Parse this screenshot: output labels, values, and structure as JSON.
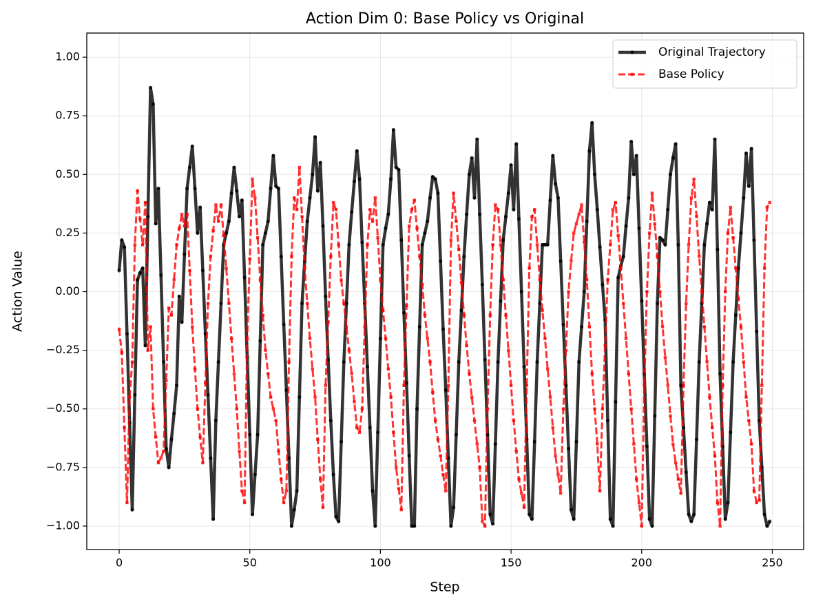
{
  "chart_data": {
    "type": "line",
    "title": "Action Dim 0: Base Policy vs Original",
    "x_label": "Step",
    "y_label": "Action Value",
    "xlim": [
      -12.4,
      262
    ],
    "ylim": [
      -1.1,
      1.103
    ],
    "xticks": [
      0,
      50,
      100,
      150,
      200,
      250
    ],
    "yticks": [
      {
        "value": -1,
        "label": "−1.00"
      },
      {
        "value": -0.75,
        "label": "−0.75"
      },
      {
        "value": -0.5,
        "label": "−0.50"
      },
      {
        "value": -0.25,
        "label": "−0.25"
      },
      {
        "value": 0,
        "label": "0.00"
      },
      {
        "value": 0.25,
        "label": "0.25"
      },
      {
        "value": 0.5,
        "label": "0.50"
      },
      {
        "value": 0.75,
        "label": "0.75"
      },
      {
        "value": 1,
        "label": "1.00"
      }
    ],
    "grid": true,
    "legend": "upper right",
    "x": [
      0,
      1,
      2,
      3,
      4,
      5,
      6,
      7,
      8,
      9,
      10,
      11,
      12,
      13,
      14,
      15,
      16,
      17,
      18,
      19,
      20,
      21,
      22,
      23,
      24,
      25,
      26,
      27,
      28,
      29,
      30,
      31,
      32,
      33,
      34,
      35,
      36,
      37,
      38,
      39,
      40,
      41,
      42,
      43,
      44,
      45,
      46,
      47,
      48,
      49,
      50,
      51,
      52,
      53,
      54,
      55,
      56,
      57,
      58,
      59,
      60,
      61,
      62,
      63,
      64,
      65,
      66,
      67,
      68,
      69,
      70,
      71,
      72,
      73,
      74,
      75,
      76,
      77,
      78,
      79,
      80,
      81,
      82,
      83,
      84,
      85,
      86,
      87,
      88,
      89,
      90,
      91,
      92,
      93,
      94,
      95,
      96,
      97,
      98,
      99,
      100,
      101,
      102,
      103,
      104,
      105,
      106,
      107,
      108,
      109,
      110,
      111,
      112,
      113,
      114,
      115,
      116,
      117,
      118,
      119,
      120,
      121,
      122,
      123,
      124,
      125,
      126,
      127,
      128,
      129,
      130,
      131,
      132,
      133,
      134,
      135,
      136,
      137,
      138,
      139,
      140,
      141,
      142,
      143,
      144,
      145,
      146,
      147,
      148,
      149,
      150,
      151,
      152,
      153,
      154,
      155,
      156,
      157,
      158,
      159,
      160,
      161,
      162,
      163,
      164,
      165,
      166,
      167,
      168,
      169,
      170,
      171,
      172,
      173,
      174,
      175,
      176,
      177,
      178,
      179,
      180,
      181,
      182,
      183,
      184,
      185,
      186,
      187,
      188,
      189,
      190,
      191,
      192,
      193,
      194,
      195,
      196,
      197,
      198,
      199,
      200,
      201,
      202,
      203,
      204,
      205,
      206,
      207,
      208,
      209,
      210,
      211,
      212,
      213,
      214,
      215,
      216,
      217,
      218,
      219,
      220,
      221,
      222,
      223,
      224,
      225,
      226,
      227,
      228,
      229,
      230,
      231,
      232,
      233,
      234,
      235,
      236,
      237,
      238,
      239,
      240,
      241,
      242,
      243,
      244,
      245,
      246,
      247,
      248,
      249
    ],
    "series": [
      {
        "name": "Original Trajectory",
        "color": "#000000",
        "style": "solid",
        "marker": "circle",
        "values": [
          0.09,
          0.22,
          0.19,
          -0.18,
          -0.56,
          -0.93,
          -0.44,
          0.05,
          0.08,
          0.1,
          -0.23,
          0.32,
          0.87,
          0.8,
          0.29,
          0.44,
          0.07,
          -0.3,
          -0.67,
          -0.75,
          -0.63,
          -0.52,
          -0.4,
          -0.02,
          -0.13,
          0.16,
          0.44,
          0.53,
          0.62,
          0.44,
          0.25,
          0.36,
          0.09,
          -0.18,
          -0.44,
          -0.71,
          -0.97,
          -0.55,
          -0.3,
          -0.05,
          0.2,
          0.25,
          0.3,
          0.42,
          0.53,
          0.43,
          0.32,
          0.39,
          0.06,
          -0.28,
          -0.61,
          -0.95,
          -0.78,
          -0.61,
          -0.21,
          0.2,
          0.25,
          0.3,
          0.44,
          0.58,
          0.45,
          0.44,
          0.15,
          -0.14,
          -0.42,
          -0.71,
          -1.0,
          -0.93,
          -0.85,
          -0.45,
          -0.05,
          0.13,
          0.3,
          0.4,
          0.5,
          0.66,
          0.43,
          0.55,
          0.28,
          -0.02,
          -0.29,
          -0.55,
          -0.78,
          -0.96,
          -0.98,
          -0.64,
          -0.3,
          -0.05,
          0.2,
          0.34,
          0.47,
          0.6,
          0.48,
          0.21,
          -0.05,
          -0.32,
          -0.58,
          -0.85,
          -1.0,
          -0.6,
          -0.2,
          0.2,
          0.27,
          0.33,
          0.48,
          0.69,
          0.53,
          0.52,
          0.22,
          -0.09,
          -0.39,
          -0.7,
          -1.0,
          -1.0,
          -0.5,
          -0.15,
          0.2,
          0.25,
          0.3,
          0.4,
          0.49,
          0.48,
          0.42,
          0.13,
          -0.16,
          -0.42,
          -0.71,
          -1.0,
          -0.92,
          -0.61,
          -0.3,
          -0.08,
          0.15,
          0.33,
          0.5,
          0.57,
          0.4,
          0.65,
          0.33,
          0.03,
          -0.29,
          -0.61,
          -0.95,
          -0.99,
          -0.65,
          -0.3,
          -0.04,
          0.22,
          0.32,
          0.42,
          0.54,
          0.35,
          0.63,
          0.31,
          0.0,
          -0.32,
          -0.63,
          -0.95,
          -0.97,
          -0.64,
          -0.3,
          -0.05,
          0.2,
          0.2,
          0.2,
          0.39,
          0.58,
          0.46,
          0.4,
          0.13,
          -0.14,
          -0.4,
          -0.67,
          -0.93,
          -0.97,
          -0.64,
          -0.3,
          -0.15,
          0.0,
          0.3,
          0.6,
          0.72,
          0.5,
          0.35,
          0.19,
          0.03,
          -0.12,
          -0.55,
          -0.97,
          -1.0,
          -0.47,
          0.06,
          0.11,
          0.15,
          0.28,
          0.4,
          0.64,
          0.5,
          0.58,
          0.27,
          -0.04,
          -0.35,
          -0.66,
          -0.97,
          -1.0,
          -0.53,
          -0.05,
          0.23,
          0.22,
          0.2,
          0.35,
          0.5,
          0.57,
          0.63,
          0.2,
          -0.4,
          -0.58,
          -0.77,
          -0.95,
          -0.98,
          -0.95,
          -0.63,
          -0.3,
          -0.05,
          0.2,
          0.29,
          0.38,
          0.35,
          0.65,
          0.18,
          -0.35,
          -0.66,
          -0.97,
          -0.9,
          -0.6,
          -0.3,
          -0.1,
          0.1,
          0.25,
          0.4,
          0.59,
          0.45,
          0.61,
          0.22,
          -0.17,
          -0.55,
          -0.75,
          -0.95,
          -1.0,
          -0.98
        ]
      },
      {
        "name": "Base Policy",
        "color": "#ff0000",
        "style": "dashed",
        "marker": "square",
        "values": [
          -0.16,
          -0.26,
          -0.58,
          -0.9,
          -0.45,
          -0.3,
          0.2,
          0.43,
          0.31,
          0.2,
          0.38,
          -0.25,
          -0.15,
          -0.5,
          -0.62,
          -0.73,
          -0.71,
          -0.68,
          -0.38,
          -0.07,
          -0.1,
          0.05,
          0.2,
          0.27,
          0.33,
          0.28,
          0.33,
          0.09,
          -0.15,
          -0.33,
          -0.5,
          -0.62,
          -0.73,
          -0.39,
          -0.05,
          0.15,
          0.26,
          0.37,
          0.3,
          0.37,
          0.24,
          0.1,
          -0.05,
          -0.2,
          -0.35,
          -0.5,
          -0.68,
          -0.85,
          -0.9,
          -0.2,
          0.14,
          0.48,
          0.4,
          0.23,
          0.05,
          -0.1,
          -0.25,
          -0.35,
          -0.45,
          -0.5,
          -0.55,
          -0.68,
          -0.8,
          -0.9,
          -0.85,
          -0.3,
          0.15,
          0.4,
          0.35,
          0.53,
          0.32,
          0.1,
          -0.05,
          -0.2,
          -0.33,
          -0.45,
          -0.63,
          -0.8,
          -0.92,
          -0.4,
          -0.13,
          0.15,
          0.38,
          0.35,
          0.2,
          0.05,
          -0.05,
          -0.15,
          -0.25,
          -0.35,
          -0.47,
          -0.58,
          -0.6,
          -0.5,
          -0.15,
          0.2,
          0.35,
          0.3,
          0.4,
          0.23,
          0.05,
          -0.08,
          -0.2,
          -0.33,
          -0.45,
          -0.6,
          -0.75,
          -0.84,
          -0.93,
          -0.4,
          -0.06,
          0.28,
          0.35,
          0.39,
          0.27,
          0.15,
          0.03,
          -0.1,
          -0.2,
          -0.3,
          -0.43,
          -0.55,
          -0.63,
          -0.7,
          -0.78,
          -0.85,
          -0.4,
          0.22,
          0.42,
          0.3,
          0.18,
          0.04,
          -0.1,
          -0.23,
          -0.35,
          -0.45,
          -0.55,
          -0.65,
          -0.75,
          -0.98,
          -1.0,
          -0.5,
          -0.1,
          0.2,
          0.37,
          0.35,
          0.2,
          0.05,
          -0.1,
          -0.25,
          -0.4,
          -0.55,
          -0.68,
          -0.8,
          -0.86,
          -0.92,
          -0.4,
          0.1,
          0.32,
          0.35,
          0.2,
          0.05,
          -0.08,
          -0.2,
          -0.33,
          -0.45,
          -0.58,
          -0.7,
          -0.78,
          -0.86,
          -0.5,
          -0.25,
          0.0,
          0.13,
          0.25,
          0.29,
          0.33,
          0.37,
          0.21,
          0.05,
          -0.15,
          -0.35,
          -0.5,
          -0.65,
          -0.85,
          -0.5,
          -0.23,
          0.05,
          0.2,
          0.35,
          0.38,
          0.24,
          0.1,
          -0.05,
          -0.2,
          -0.35,
          -0.5,
          -0.65,
          -0.8,
          -0.9,
          -1.0,
          -0.4,
          0.0,
          0.25,
          0.42,
          0.29,
          0.15,
          0.0,
          -0.15,
          -0.28,
          -0.4,
          -0.53,
          -0.65,
          -0.73,
          -0.8,
          -0.86,
          -0.4,
          -0.05,
          0.2,
          0.4,
          0.48,
          0.32,
          0.15,
          0.0,
          -0.15,
          -0.3,
          -0.45,
          -0.58,
          -0.7,
          -0.9,
          -1.0,
          -0.4,
          0.0,
          0.25,
          0.36,
          0.23,
          0.1,
          -0.03,
          -0.15,
          -0.3,
          -0.45,
          -0.55,
          -0.65,
          -0.85,
          -0.9,
          -0.89,
          -0.4,
          0.1,
          0.36,
          0.38
        ]
      }
    ]
  }
}
